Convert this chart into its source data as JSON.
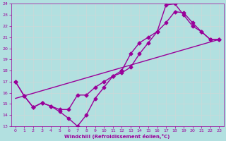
{
  "xlabel": "Windchill (Refroidissement éolien,°C)",
  "bg_color": "#b2e0e0",
  "grid_color": "#c8dada",
  "line_color": "#990099",
  "xlim": [
    -0.5,
    23.5
  ],
  "ylim": [
    13,
    24
  ],
  "xticks": [
    0,
    1,
    2,
    3,
    4,
    5,
    6,
    7,
    8,
    9,
    10,
    11,
    12,
    13,
    14,
    15,
    16,
    17,
    18,
    19,
    20,
    21,
    22,
    23
  ],
  "yticks": [
    13,
    14,
    15,
    16,
    17,
    18,
    19,
    20,
    21,
    22,
    23,
    24
  ],
  "line1_x": [
    0,
    1,
    2,
    3,
    4,
    5,
    6,
    7,
    8,
    9,
    10,
    11,
    12,
    13,
    14,
    15,
    16,
    17,
    18,
    19,
    20,
    21,
    22,
    23
  ],
  "line1_y": [
    17.0,
    15.7,
    14.7,
    15.1,
    14.8,
    14.3,
    13.7,
    13.0,
    14.0,
    15.5,
    16.5,
    17.5,
    17.8,
    18.3,
    19.5,
    20.5,
    21.5,
    23.9,
    24.0,
    23.0,
    22.0,
    21.5,
    20.8,
    20.8
  ],
  "line2_x": [
    0,
    1,
    2,
    3,
    4,
    5,
    6,
    7,
    8,
    9,
    10,
    11,
    12,
    13,
    14,
    15,
    16,
    17,
    18,
    19,
    20,
    21,
    22,
    23
  ],
  "line2_y": [
    17.0,
    15.7,
    14.7,
    15.1,
    14.8,
    14.5,
    14.5,
    15.8,
    15.8,
    16.5,
    17.0,
    17.5,
    18.0,
    19.5,
    20.5,
    21.0,
    21.5,
    22.3,
    23.3,
    23.2,
    22.3,
    21.5,
    20.8,
    20.8
  ],
  "line3_x": [
    0,
    23
  ],
  "line3_y": [
    15.5,
    20.8
  ],
  "marker": "D",
  "markersize": 2.5,
  "linewidth": 1.0
}
